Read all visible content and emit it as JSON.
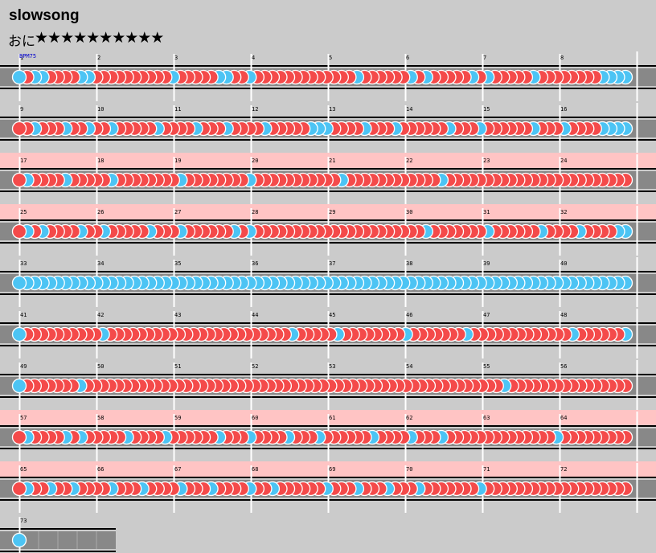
{
  "song": {
    "title": "slowsong",
    "difficulty_label": "おに",
    "stars": "★★★★★★★★★★",
    "bpm_label": "BPM75"
  },
  "colors": {
    "background": "#cbcbcb",
    "lane": "#888888",
    "gogo": "#ffc4c4",
    "don": "#f44a4a",
    "ka": "#4cc4f4",
    "barline": "#ffffff"
  },
  "chart_data": {
    "type": "taiko-notechart",
    "measures_total": 73,
    "measures_per_row": 8,
    "gogo_rows": [
      2,
      3,
      7,
      8
    ],
    "rows": [
      "KDKKDDDDKKDDDDDDDDDDKDDDDDKKDDKDDDDDDDDDDDDDKDDDDDDKDKDDDDDKDKDDDDDKDDDDDDDDKKKK",
      "DDKDDDKDDKDDKDDDDDKDDDDKDDDKDDDDKDDDDDKKKDDDDKDDDKDDDDDDKDDDKDDDDDDKDDDKDDDDKKKK",
      "DKDDDDKDDDDDKDDDDDDDDKDDDDDDDDKDDDDDDDDDDDKDDDDDDDDDDDDKDDDDDDDDDDDDDDDDDDDDDDDD",
      "DKDKDDDDKDDKDDDDDKDDDKDDDDDDKDKDDDDDDDDDDDDDDDDDDDDDDKDDDDDDDKDDDDDDKDDDDKDDDDKK",
      "KKKKKKKKKKKKKKKKKKKKKKKKKKKKKKKKKKKKKKKKKKKKKKKKKKKKKKKKKKKKKKKKKKKKKKKKKKKKKKKK",
      "KDDDDDDDDDDKDDDDDDDDDDDDDDDDDDDDDDDDKDDDDDKDDDDDDDDKDDDDDDDKDDDDDDDDDDDDDKDDDDDDK",
      "KDDDDDDDKDDDDDDDDDDDDDDDDDDDDDDDDDDDDDDDDDDDDDDDDDDDDDDDDDDDDDDDKDDDDDDDDDDDDDDDD",
      "DKDDDDKDKDDDDDKDDDDKDDDDDDKDDDKDDDDKDDDKDDDDDDKDDDDKDDDKDDDDDDDDDDDDDDKDDDDDDDDD",
      "DKDDKDDKDDDDKDDDKDDDDKDDDKDDDDKDDKDDDDDDKDDDKDDDKDDDKDDDDDDDKDDDDDDDDDDDDDDDDDDD",
      "K"
    ]
  }
}
